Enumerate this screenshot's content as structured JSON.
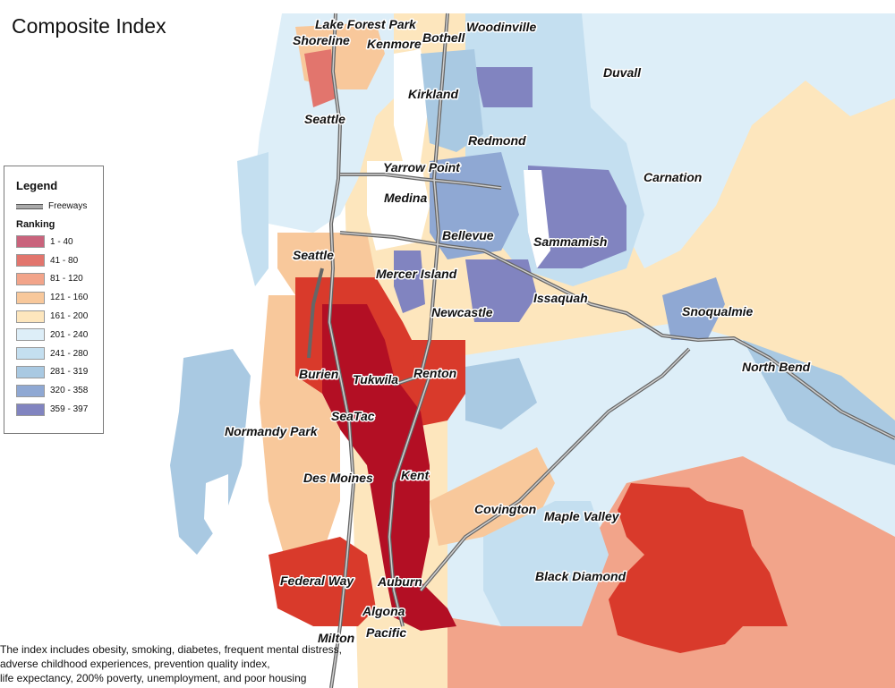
{
  "title": "Composite Index",
  "legend": {
    "title": "Legend",
    "freeways_label": "Freeways",
    "ranking_title": "Ranking",
    "classes": [
      {
        "label": "1 - 40",
        "color": "#c9637c"
      },
      {
        "label": "41 - 80",
        "color": "#e2756d"
      },
      {
        "label": "81 - 120",
        "color": "#f2a48a"
      },
      {
        "label": "121 - 160",
        "color": "#f8c89b"
      },
      {
        "label": "161 - 200",
        "color": "#fde6bd"
      },
      {
        "label": "201 - 240",
        "color": "#ddeef8"
      },
      {
        "label": "241 - 280",
        "color": "#c4dff0"
      },
      {
        "label": "281 - 319",
        "color": "#a9c9e2"
      },
      {
        "label": "320 - 358",
        "color": "#8fa8d3"
      },
      {
        "label": "359 - 397",
        "color": "#8184c0"
      }
    ]
  },
  "cities": [
    "Lake Forest Park",
    "Woodinville",
    "Shoreline",
    "Kenmore",
    "Bothell",
    "Duvall",
    "Kirkland",
    "Seattle",
    "Redmond",
    "Yarrow Point",
    "Carnation",
    "Medina",
    "Bellevue",
    "Sammamish",
    "Seattle",
    "Mercer Island",
    "Issaquah",
    "Newcastle",
    "Snoqualmie",
    "Renton",
    "North Bend",
    "Burien",
    "Tukwila",
    "SeaTac",
    "Normandy Park",
    "Des Moines",
    "Kent",
    "Covington",
    "Maple Valley",
    "Black Diamond",
    "Federal Way",
    "Auburn",
    "Algona",
    "Pacific",
    "Milton"
  ],
  "footnote": [
    "The index includes obesity, smoking, diabetes, frequent mental distress,",
    "adverse childhood experiences, prevention quality index,",
    "life expectancy, 200% poverty, unemployment, and poor housing"
  ]
}
